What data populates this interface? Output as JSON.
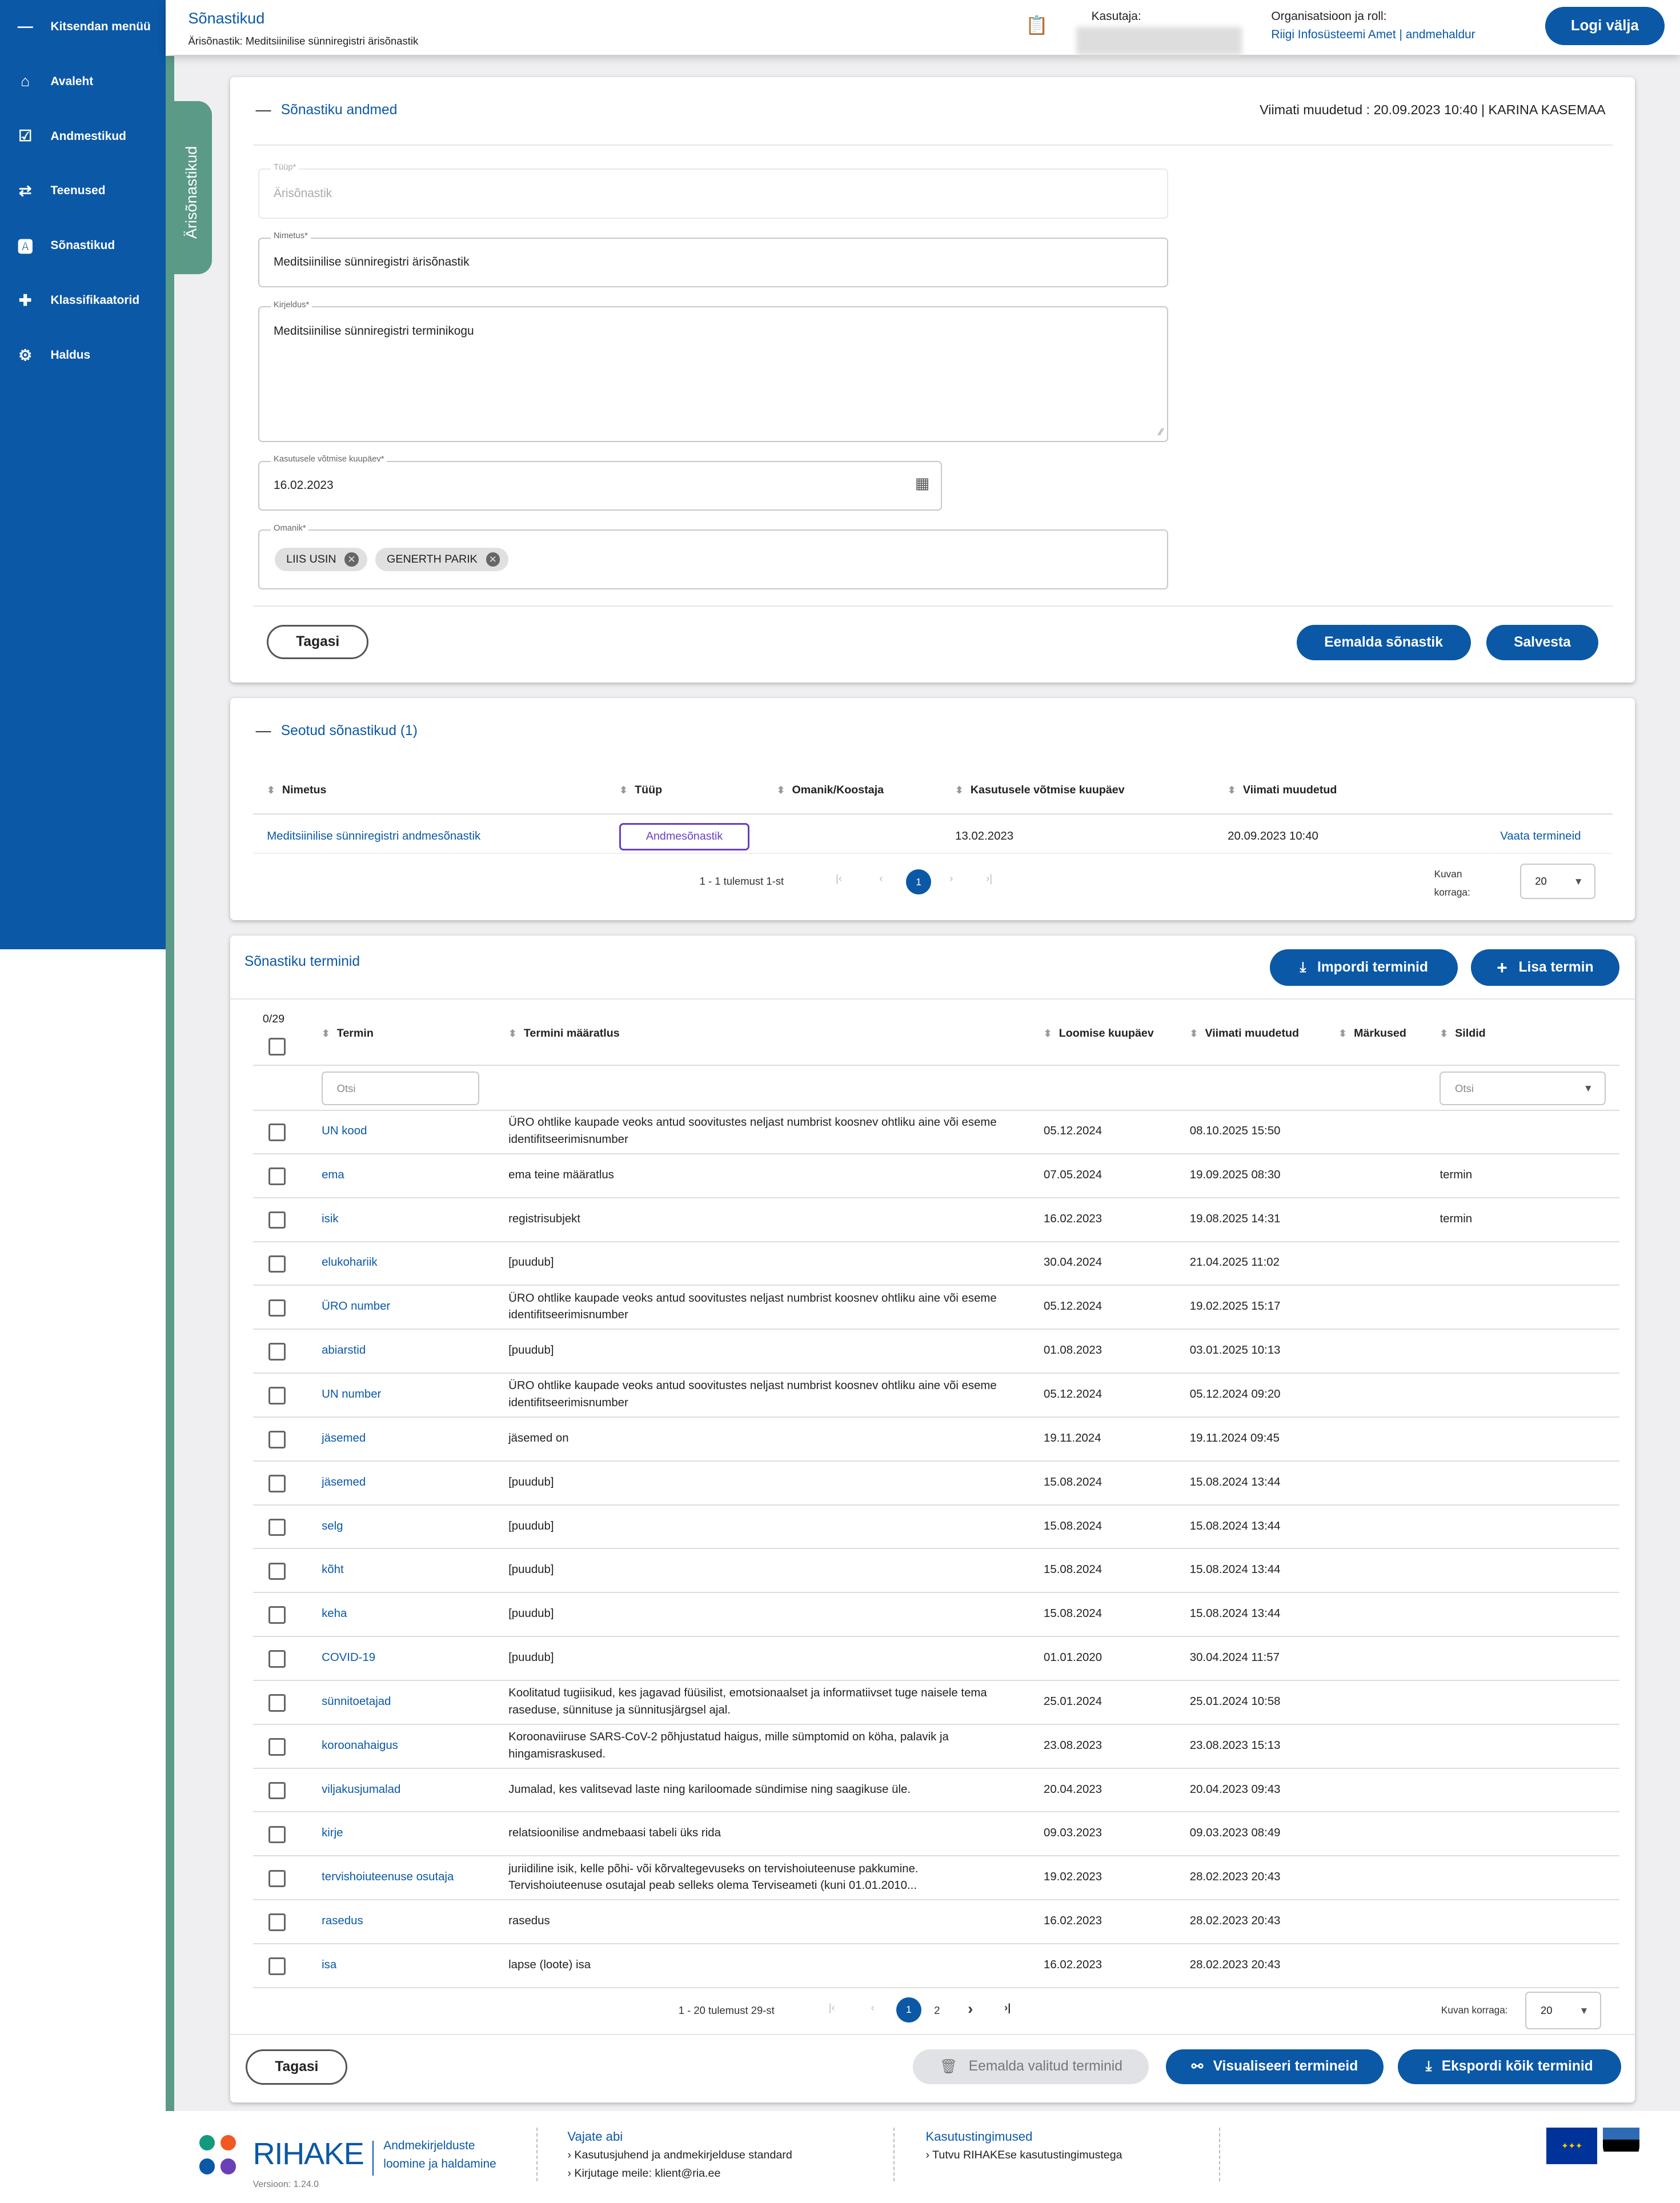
{
  "sidebar": {
    "collapse_label": "Kitsendan menüü",
    "items": [
      {
        "label": "Avaleht",
        "icon": "home-icon"
      },
      {
        "label": "Andmestikud",
        "icon": "clipboard-check-icon"
      },
      {
        "label": "Teenused",
        "icon": "swap-arrows-icon"
      },
      {
        "label": "Sõnastikud",
        "icon": "dictionary-icon"
      },
      {
        "label": "Klassifikaatorid",
        "icon": "puzzle-icon"
      },
      {
        "label": "Haldus",
        "icon": "admin-gear-icon"
      }
    ]
  },
  "vertical_tab": "Ärisõnastikud",
  "header": {
    "title": "Sõnastikud",
    "subtitle": "Ärisõnastik: Meditsiinilise sünniregistri ärisõnastik",
    "user_label": "Kasutaja:",
    "org_label": "Organisatsioon ja roll:",
    "org_value": "Riigi Infosüsteemi Amet | andmehaldur",
    "logout": "Logi välja"
  },
  "details": {
    "section_title": "Sõnastiku andmed",
    "last_modified": "Viimati muudetud : 20.09.2023 10:40 | KARINA KASEMAA",
    "type_label": "Tüüp*",
    "type_value": "Ärisõnastik",
    "name_label": "Nimetus*",
    "name_value": "Meditsiinilise sünniregistri ärisõnastik",
    "desc_label": "Kirjeldus*",
    "desc_value": "Meditsiinilise sünniregistri terminikogu",
    "date_label": "Kasutusele võtmise kuupäev*",
    "date_value": "16.02.2023",
    "owner_label": "Omanik*",
    "owners": [
      "LIIS USIN",
      "GENERTH PARIK"
    ],
    "back": "Tagasi",
    "remove": "Eemalda sõnastik",
    "save": "Salvesta"
  },
  "related": {
    "section_title": "Seotud sõnastikud (1)",
    "columns": [
      "Nimetus",
      "Tüüp",
      "Omanik/Koostaja",
      "Kasutusele võtmise kuupäev",
      "Viimati muudetud"
    ],
    "rows": [
      {
        "name": "Meditsiinilise sünniregistri andmesõnastik",
        "type": "Andmesõnastik",
        "owner": "",
        "date": "13.02.2023",
        "modified": "20.09.2023 10:40",
        "action": "Vaata termineid"
      }
    ],
    "range": "1 - 1 tulemust 1-st",
    "page": "1",
    "per_page_label": "Kuvan korraga:",
    "per_page": "20"
  },
  "terms": {
    "section_title": "Sõnastiku terminid",
    "import": "Impordi terminid",
    "add": "Lisa termin",
    "selected": "0/29",
    "columns": [
      "Termin",
      "Termini määratlus",
      "Loomise kuupäev",
      "Viimati muudetud",
      "Märkused",
      "Sildid"
    ],
    "search_placeholder": "Otsi",
    "tags_placeholder": "Otsi",
    "rows": [
      {
        "term": "UN kood",
        "def": "ÜRO ohtlike kaupade veoks antud soovitustes neljast numbrist koosnev ohtliku aine või eseme identifitseerimisnumber",
        "created": "05.12.2024",
        "modified": "08.10.2025 15:50",
        "notes": "",
        "tags": ""
      },
      {
        "term": "ema",
        "def": "ema teine määratlus",
        "created": "07.05.2024",
        "modified": "19.09.2025 08:30",
        "notes": "",
        "tags": "termin"
      },
      {
        "term": "isik",
        "def": "registrisubjekt",
        "created": "16.02.2023",
        "modified": "19.08.2025 14:31",
        "notes": "",
        "tags": "termin"
      },
      {
        "term": "elukohariik",
        "def": "[puudub]",
        "created": "30.04.2024",
        "modified": "21.04.2025 11:02",
        "notes": "",
        "tags": ""
      },
      {
        "term": "ÜRO number",
        "def": "ÜRO ohtlike kaupade veoks antud soovitustes neljast numbrist koosnev ohtliku aine või eseme identifitseerimisnumber",
        "created": "05.12.2024",
        "modified": "19.02.2025 15:17",
        "notes": "",
        "tags": ""
      },
      {
        "term": "abiarstid",
        "def": "[puudub]",
        "created": "01.08.2023",
        "modified": "03.01.2025 10:13",
        "notes": "",
        "tags": ""
      },
      {
        "term": "UN number",
        "def": "ÜRO ohtlike kaupade veoks antud soovitustes neljast numbrist koosnev ohtliku aine või eseme identifitseerimisnumber",
        "created": "05.12.2024",
        "modified": "05.12.2024 09:20",
        "notes": "",
        "tags": ""
      },
      {
        "term": "jäsemed",
        "def": "jäsemed on",
        "created": "19.11.2024",
        "modified": "19.11.2024 09:45",
        "notes": "",
        "tags": ""
      },
      {
        "term": "jäsemed",
        "def": "[puudub]",
        "created": "15.08.2024",
        "modified": "15.08.2024 13:44",
        "notes": "",
        "tags": ""
      },
      {
        "term": "selg",
        "def": "[puudub]",
        "created": "15.08.2024",
        "modified": "15.08.2024 13:44",
        "notes": "",
        "tags": ""
      },
      {
        "term": "kõht",
        "def": "[puudub]",
        "created": "15.08.2024",
        "modified": "15.08.2024 13:44",
        "notes": "",
        "tags": ""
      },
      {
        "term": "keha",
        "def": "[puudub]",
        "created": "15.08.2024",
        "modified": "15.08.2024 13:44",
        "notes": "",
        "tags": ""
      },
      {
        "term": "COVID-19",
        "def": "[puudub]",
        "created": "01.01.2020",
        "modified": "30.04.2024 11:57",
        "notes": "",
        "tags": ""
      },
      {
        "term": "sünnitoetajad",
        "def": "Koolitatud tugiisikud, kes jagavad füüsilist, emotsionaalset ja informatiivset tuge naisele tema raseduse, sünnituse ja sünnitusjärgsel ajal.",
        "created": "25.01.2024",
        "modified": "25.01.2024 10:58",
        "notes": "",
        "tags": ""
      },
      {
        "term": "koroonahaigus",
        "def": "Koroonaviiruse SARS-CoV-2 põhjustatud haigus, mille sümptomid on köha, palavik ja hingamisraskused.",
        "created": "23.08.2023",
        "modified": "23.08.2023 15:13",
        "notes": "",
        "tags": ""
      },
      {
        "term": "viljakusjumalad",
        "def": "Jumalad, kes valitsevad laste ning kariloomade sündimise ning saagikuse üle.",
        "created": "20.04.2023",
        "modified": "20.04.2023 09:43",
        "notes": "",
        "tags": ""
      },
      {
        "term": "kirje",
        "def": "relatsioonilise andmebaasi tabeli üks rida",
        "created": "09.03.2023",
        "modified": "09.03.2023 08:49",
        "notes": "",
        "tags": ""
      },
      {
        "term": "tervishoiuteenuse osutaja",
        "def": "juriidiline isik, kelle põhi- või kõrvaltegevuseks on tervishoiuteenuse pakkumine. Tervishoiuteenuse osutajal peab selleks olema Terviseameti (kuni 01.01.2010...",
        "created": "19.02.2023",
        "modified": "28.02.2023 20:43",
        "notes": "",
        "tags": ""
      },
      {
        "term": "rasedus",
        "def": "rasedus",
        "created": "16.02.2023",
        "modified": "28.02.2023 20:43",
        "notes": "",
        "tags": ""
      },
      {
        "term": "isa",
        "def": "lapse (loote) isa",
        "created": "16.02.2023",
        "modified": "28.02.2023 20:43",
        "notes": "",
        "tags": ""
      }
    ],
    "range": "1 - 20 tulemust 29-st",
    "pages": [
      "1",
      "2"
    ],
    "per_page_label": "Kuvan korraga:",
    "per_page": "20",
    "back": "Tagasi",
    "remove_selected": "Eemalda valitud terminid",
    "visualize": "Visualiseeri termineid",
    "export": "Ekspordi kõik terminid"
  },
  "footer": {
    "logo": "RIHAKE",
    "tagline1": "Andmekirjelduste",
    "tagline2": "loomine ja haldamine",
    "version": "Versioon: 1.24.0",
    "help_title": "Vajate abi",
    "help_link1": "› Kasutusjuhend ja andmekirjelduse standard",
    "help_link2_prefix": "› Kirjutage meile:",
    "help_email": "klient@ria.ee",
    "terms_title": "Kasutustingimused",
    "terms_link": "› Tutvu RIHAKEse kasutustingimustega"
  },
  "colors": {
    "primary": "#0b58a6",
    "accent_green": "#5a9a86",
    "background": "#efeff1"
  }
}
